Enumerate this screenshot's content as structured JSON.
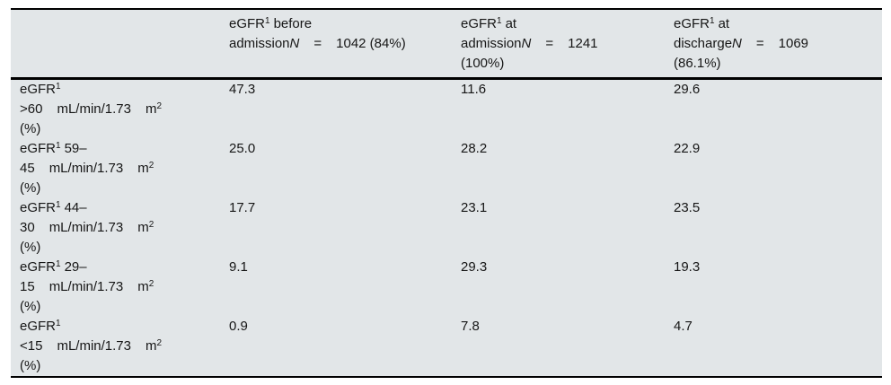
{
  "colors": {
    "table_background": "#e2e6e8",
    "rule": "#000000",
    "text": "#161616",
    "page_background": "#ffffff"
  },
  "table": {
    "header": {
      "corner": "",
      "columns": [
        {
          "title_base": "eGFR",
          "title_sup": "1",
          "title_rest": "before",
          "line2_word": "admission",
          "line2_n": "N",
          "line2_eq": "=",
          "line2_value": "1042 (84%)",
          "line3": ""
        },
        {
          "title_base": "eGFR",
          "title_sup": "1",
          "title_rest": "at",
          "line2_word": "admission",
          "line2_n": "N",
          "line2_eq": "=",
          "line2_value": "1241",
          "line3": "(100%)"
        },
        {
          "title_base": "eGFR",
          "title_sup": "1",
          "title_rest": "at",
          "line2_word": "discharge",
          "line2_n": "N",
          "line2_eq": "=",
          "line2_value": "1069",
          "line3": "(86.1%)"
        }
      ]
    },
    "rows": [
      {
        "label_base": "eGFR",
        "label_sup": "1",
        "label_rest": "",
        "range": ">60",
        "unit": "mL/min/1.73",
        "unit_m": "m",
        "unit_m_sup": "2",
        "pct": "(%)",
        "values": [
          "47.3",
          "11.6",
          "29.6"
        ]
      },
      {
        "label_base": "eGFR",
        "label_sup": "1",
        "label_rest": "59–",
        "range": "45",
        "unit": "mL/min/1.73",
        "unit_m": "m",
        "unit_m_sup": "2",
        "pct": "(%)",
        "values": [
          "25.0",
          "28.2",
          "22.9"
        ]
      },
      {
        "label_base": "eGFR",
        "label_sup": "1",
        "label_rest": "44–",
        "range": "30",
        "unit": "mL/min/1.73",
        "unit_m": "m",
        "unit_m_sup": "2",
        "pct": "(%)",
        "values": [
          "17.7",
          "23.1",
          "23.5"
        ]
      },
      {
        "label_base": "eGFR",
        "label_sup": "1",
        "label_rest": "29–",
        "range": "15",
        "unit": "mL/min/1.73",
        "unit_m": "m",
        "unit_m_sup": "2",
        "pct": "(%)",
        "values": [
          "9.1",
          "29.3",
          "19.3"
        ]
      },
      {
        "label_base": "eGFR",
        "label_sup": "1",
        "label_rest": "",
        "range": "<15",
        "unit": "mL/min/1.73",
        "unit_m": "m",
        "unit_m_sup": "2",
        "pct": "(%)",
        "values": [
          "0.9",
          "7.8",
          "4.7"
        ]
      }
    ]
  }
}
